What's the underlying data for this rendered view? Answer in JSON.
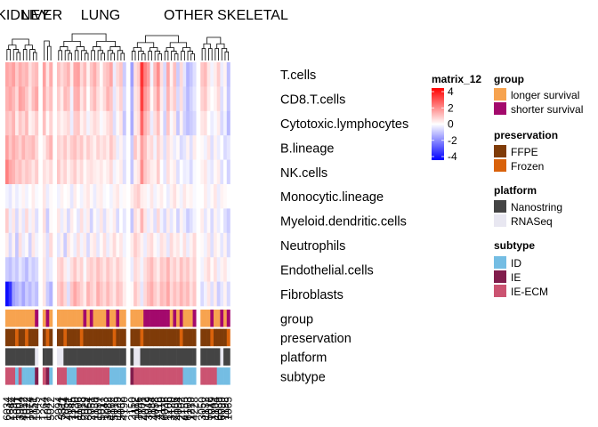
{
  "chart_data": {
    "type": "heatmap",
    "row_labels": [
      "T.cells",
      "CD8.T.cells",
      "Cytotoxic.lymphocytes",
      "B.lineage",
      "NK.cells",
      "Monocytic.lineage",
      "Myeloid.dendritic.cells",
      "Neutrophils",
      "Endothelial.cells",
      "Fibroblasts"
    ],
    "column_groups": [
      {
        "label": "KIDNEY",
        "n": 10
      },
      {
        "label": "LIVER",
        "n": 3
      },
      {
        "label": "LUNG",
        "n": 21
      },
      {
        "label": "OTHER",
        "n": 20
      },
      {
        "label": "SKELETAL",
        "n": 9
      }
    ],
    "annotation_rows": [
      "group",
      "preservation",
      "platform",
      "subtype"
    ],
    "annotations": {
      "group": [
        "longer survival",
        "longer survival",
        "longer survival",
        "longer survival",
        "longer survival",
        "longer survival",
        "longer survival",
        "longer survival",
        "longer survival",
        "shorter survival",
        "longer survival",
        "shorter survival",
        "longer survival",
        "longer survival",
        "longer survival",
        "longer survival",
        "longer survival",
        "longer survival",
        "longer survival",
        "longer survival",
        "longer survival",
        "shorter survival",
        "longer survival",
        "shorter survival",
        "longer survival",
        "longer survival",
        "longer survival",
        "longer survival",
        "shorter survival",
        "longer survival",
        "longer survival",
        "shorter survival",
        "longer survival",
        "longer survival",
        "longer survival",
        "longer survival",
        "longer survival",
        "longer survival",
        "shorter survival",
        "shorter survival",
        "shorter survival",
        "shorter survival",
        "shorter survival",
        "shorter survival",
        "shorter survival",
        "shorter survival",
        "longer survival",
        "shorter survival",
        "longer survival",
        "shorter survival",
        "longer survival",
        "longer survival",
        "longer survival",
        "shorter survival",
        "longer survival",
        "longer survival",
        "longer survival",
        "shorter survival",
        "longer survival",
        "longer survival",
        "shorter survival",
        "longer survival",
        "shorter survival"
      ],
      "preservation": [
        "FFPE",
        "FFPE",
        "FFPE",
        "Frozen",
        "FFPE",
        "FFPE",
        "Frozen",
        "FFPE",
        "FFPE",
        "FFPE",
        "FFPE",
        "Frozen",
        "FFPE",
        "FFPE",
        "FFPE",
        "Frozen",
        "FFPE",
        "FFPE",
        "FFPE",
        "FFPE",
        "Frozen",
        "FFPE",
        "FFPE",
        "FFPE",
        "FFPE",
        "FFPE",
        "FFPE",
        "FFPE",
        "FFPE",
        "FFPE",
        "Frozen",
        "FFPE",
        "FFPE",
        "FFPE",
        "FFPE",
        "FFPE",
        "FFPE",
        "Frozen",
        "FFPE",
        "FFPE",
        "FFPE",
        "FFPE",
        "FFPE",
        "FFPE",
        "FFPE",
        "FFPE",
        "FFPE",
        "FFPE",
        "FFPE",
        "Frozen",
        "FFPE",
        "FFPE",
        "FFPE",
        "FFPE",
        "FFPE",
        "FFPE",
        "FFPE",
        "Frozen",
        "FFPE",
        "FFPE",
        "FFPE",
        "FFPE",
        "Frozen"
      ],
      "platform": [
        "Nanostring",
        "Nanostring",
        "Nanostring",
        "Nanostring",
        "Nanostring",
        "Nanostring",
        "Nanostring",
        "Nanostring",
        "Nanostring",
        "RNASeq",
        "Nanostring",
        "Nanostring",
        "Nanostring",
        "RNASeq",
        "RNASeq",
        "Nanostring",
        "Nanostring",
        "Nanostring",
        "Nanostring",
        "Nanostring",
        "Nanostring",
        "Nanostring",
        "Nanostring",
        "Nanostring",
        "Nanostring",
        "Nanostring",
        "Nanostring",
        "Nanostring",
        "Nanostring",
        "Nanostring",
        "Nanostring",
        "Nanostring",
        "Nanostring",
        "Nanostring",
        "Nanostring",
        "RNASeq",
        "RNASeq",
        "Nanostring",
        "Nanostring",
        "Nanostring",
        "Nanostring",
        "Nanostring",
        "Nanostring",
        "Nanostring",
        "Nanostring",
        "Nanostring",
        "Nanostring",
        "Nanostring",
        "Nanostring",
        "Nanostring",
        "Nanostring",
        "Nanostring",
        "Nanostring",
        "Nanostring",
        "Nanostring",
        "Nanostring",
        "Nanostring",
        "Nanostring",
        "Nanostring",
        "Nanostring",
        "RNASeq",
        "Nanostring",
        "Nanostring"
      ],
      "subtype": [
        "IE-ECM",
        "IE-ECM",
        "IE-ECM",
        "ID",
        "IE-ECM",
        "ID",
        "ID",
        "ID",
        "ID",
        "IE",
        "IE-ECM",
        "IE",
        "ID",
        "IE-ECM",
        "IE-ECM",
        "IE-ECM",
        "ID",
        "ID",
        "ID",
        "IE-ECM",
        "IE-ECM",
        "IE-ECM",
        "IE-ECM",
        "IE-ECM",
        "IE-ECM",
        "IE-ECM",
        "IE-ECM",
        "IE-ECM",
        "IE-ECM",
        "ID",
        "ID",
        "ID",
        "ID",
        "ID",
        "IE",
        "IE-ECM",
        "IE-ECM",
        "IE-ECM",
        "IE-ECM",
        "IE-ECM",
        "IE-ECM",
        "IE-ECM",
        "IE-ECM",
        "IE-ECM",
        "IE-ECM",
        "IE-ECM",
        "IE-ECM",
        "IE-ECM",
        "IE-ECM",
        "IE-ECM",
        "ID",
        "ID",
        "ID",
        "ID",
        "IE-ECM",
        "IE-ECM",
        "IE-ECM",
        "IE-ECM",
        "IE-ECM",
        "ID",
        "ID",
        "ID",
        "ID"
      ]
    },
    "values": [
      [
        1.4,
        1.2,
        1.5,
        0.8,
        1.3,
        1.0,
        1.2,
        0.5,
        0.9,
        1.1,
        1.5,
        0.4,
        1.3,
        1.0,
        0.6,
        0.9,
        1.2,
        0.3,
        1.4,
        1.5,
        0.6,
        1.1,
        0.2,
        0.9,
        1.3,
        0.7,
        0.1,
        0.8,
        1.0,
        1.4,
        -0.3,
        0.6,
        0.9,
        -0.8,
        -1.5,
        0.5,
        0.8,
        3.2,
        2.0,
        1.5,
        -0.2,
        1.1,
        1.8,
        0.5,
        -0.6,
        1.4,
        0.2,
        1.0,
        -0.8,
        0.6,
        -0.4,
        -1.2,
        -0.9,
        -0.5,
        0.9,
        1.1,
        0.4,
        -0.2,
        0.3,
        0.8,
        -0.3,
        0.2,
        -1.0
      ],
      [
        1.2,
        1.4,
        1.1,
        0.6,
        1.5,
        1.3,
        0.9,
        0.4,
        1.0,
        1.4,
        1.3,
        0.6,
        1.0,
        0.8,
        0.3,
        1.1,
        0.9,
        -0.2,
        1.2,
        1.3,
        0.4,
        0.9,
        0.0,
        0.7,
        1.1,
        0.5,
        0.2,
        0.6,
        1.2,
        0.9,
        -0.4,
        0.3,
        0.7,
        -0.6,
        -1.2,
        0.4,
        0.6,
        3.0,
        1.6,
        1.2,
        0.1,
        0.8,
        1.5,
        0.3,
        -0.5,
        1.2,
        0.4,
        0.8,
        -0.6,
        0.5,
        -0.6,
        -1.1,
        -0.7,
        -0.4,
        0.7,
        0.9,
        0.3,
        0.0,
        0.2,
        0.6,
        -0.5,
        0.1,
        -0.9
      ],
      [
        1.0,
        0.8,
        1.2,
        0.3,
        0.9,
        0.6,
        1.1,
        0.2,
        0.4,
        0.8,
        1.0,
        0.1,
        0.7,
        0.5,
        0.2,
        0.4,
        0.6,
        -0.3,
        0.8,
        0.9,
        0.2,
        0.5,
        -0.2,
        0.3,
        0.6,
        0.4,
        -0.1,
        0.2,
        0.5,
        0.7,
        -0.5,
        0.1,
        0.4,
        -0.9,
        -1.3,
        0.3,
        0.5,
        2.4,
        1.2,
        0.8,
        -0.3,
        0.5,
        1.0,
        0.1,
        -0.7,
        0.9,
        -0.1,
        0.4,
        -0.9,
        0.2,
        -0.7,
        -1.0,
        -0.8,
        -0.6,
        0.4,
        0.5,
        0.0,
        -0.3,
        -0.1,
        0.3,
        -0.6,
        -0.2,
        -1.1
      ],
      [
        1.5,
        0.9,
        1.3,
        1.0,
        0.7,
        1.2,
        0.8,
        0.9,
        1.1,
        0.6,
        0.3,
        0.8,
        1.2,
        0.7,
        0.5,
        0.9,
        0.4,
        0.8,
        1.0,
        0.6,
        0.9,
        0.3,
        0.8,
        0.5,
        0.2,
        0.7,
        0.4,
        0.6,
        0.3,
        0.9,
        0.5,
        -0.3,
        0.2,
        -0.4,
        -0.8,
        0.9,
        0.3,
        1.5,
        1.0,
        0.4,
        0.6,
        -0.2,
        0.7,
        0.3,
        -0.5,
        0.5,
        0.2,
        -0.3,
        0.1,
        -0.6,
        -0.4,
        0.2,
        -0.5,
        0.3,
        0.1,
        -0.2,
        0.4,
        -0.5,
        0.2,
        -0.3,
        0.0,
        -0.6,
        -0.4
      ],
      [
        2.0,
        1.4,
        1.2,
        0.8,
        1.0,
        0.6,
        0.9,
        0.7,
        0.4,
        0.8,
        0.5,
        0.3,
        0.6,
        0.9,
        0.4,
        0.7,
        0.2,
        0.5,
        0.8,
        0.3,
        0.6,
        0.1,
        0.4,
        0.5,
        0.3,
        0.2,
        0.4,
        0.1,
        0.3,
        0.6,
        -0.2,
        0.1,
        0.3,
        -0.5,
        -0.9,
        0.2,
        0.4,
        1.8,
        0.9,
        0.6,
        0.3,
        0.2,
        0.8,
        0.0,
        -0.4,
        0.5,
        0.1,
        0.3,
        -0.5,
        0.0,
        -0.3,
        -0.2,
        -0.6,
        -0.1,
        0.2,
        0.4,
        -0.2,
        -0.4,
        0.1,
        0.3,
        -0.5,
        0.0,
        -0.7
      ],
      [
        -0.2,
        -0.4,
        0.1,
        -0.3,
        -0.1,
        0.2,
        -0.2,
        0.0,
        0.3,
        -0.1,
        0.4,
        -0.3,
        0.1,
        -0.2,
        0.2,
        0.0,
        0.1,
        -0.4,
        0.3,
        0.0,
        -0.2,
        0.2,
        0.4,
        0.1,
        -0.3,
        0.2,
        0.3,
        -0.1,
        0.0,
        -0.2,
        0.2,
        0.4,
        -0.1,
        0.1,
        0.3,
        0.6,
        0.8,
        0.3,
        0.2,
        -0.1,
        0.4,
        -0.2,
        0.1,
        0.3,
        0.0,
        -0.3,
        0.2,
        0.5,
        0.1,
        -0.2,
        0.4,
        0.1,
        0.2,
        -0.1,
        0.0,
        0.3,
        -0.2,
        0.1,
        0.4,
        -0.3,
        0.2,
        0.1,
        0.0
      ],
      [
        0.8,
        -0.3,
        0.4,
        -0.6,
        0.2,
        -0.4,
        0.6,
        -0.2,
        0.3,
        -0.5,
        0.5,
        -0.8,
        0.1,
        0.4,
        -0.3,
        0.2,
        -0.6,
        0.3,
        0.0,
        -0.4,
        0.5,
        -0.2,
        0.3,
        -0.7,
        0.1,
        -0.3,
        0.4,
        -0.5,
        0.2,
        -0.1,
        0.3,
        -0.6,
        0.0,
        -0.4,
        -0.9,
        0.5,
        0.2,
        1.2,
        0.4,
        -0.3,
        0.2,
        -0.5,
        0.6,
        -0.2,
        -0.6,
        0.3,
        -0.4,
        0.1,
        -0.7,
        0.2,
        -0.3,
        -0.8,
        -0.5,
        -0.2,
        0.3,
        -0.4,
        0.1,
        -0.6,
        0.2,
        -0.3,
        0.0,
        -0.5,
        -0.8
      ],
      [
        0.3,
        -0.6,
        0.2,
        -0.9,
        0.5,
        -0.3,
        0.1,
        -0.7,
        0.4,
        -0.2,
        0.3,
        -0.5,
        0.6,
        -0.4,
        0.2,
        -0.8,
        0.4,
        0.1,
        -0.3,
        0.5,
        -0.2,
        0.3,
        -0.6,
        0.2,
        0.4,
        -0.4,
        0.1,
        0.5,
        -0.3,
        0.2,
        0.6,
        0.1,
        0.4,
        -0.2,
        0.3,
        0.8,
        0.5,
        0.2,
        -0.3,
        0.4,
        0.6,
        0.1,
        -0.2,
        0.5,
        0.3,
        -0.4,
        0.6,
        0.2,
        0.4,
        -0.1,
        0.5,
        -0.3,
        0.2,
        0.6,
        0.1,
        -0.2,
        0.4,
        -0.5,
        0.3,
        0.1,
        -0.4,
        0.2,
        -0.6
      ],
      [
        -0.8,
        -1.0,
        -0.6,
        -0.9,
        -0.4,
        -0.7,
        -1.1,
        -0.5,
        -0.8,
        -0.6,
        0.4,
        -0.5,
        -0.3,
        0.6,
        0.8,
        0.3,
        -0.2,
        0.5,
        0.9,
        0.4,
        0.7,
        -0.1,
        0.6,
        0.8,
        0.5,
        1.0,
        0.7,
        0.4,
        0.9,
        0.6,
        0.3,
        0.8,
        0.5,
        0.2,
        -0.3,
        0.6,
        0.4,
        -0.2,
        0.5,
        0.8,
        1.1,
        0.6,
        0.3,
        0.9,
        0.7,
        1.2,
        0.5,
        0.8,
        0.4,
        1.0,
        0.6,
        0.9,
        0.4,
        0.7,
        -0.2,
        0.3,
        0.6,
        0.1,
        0.5,
        -0.3,
        0.2,
        0.4,
        -0.1
      ],
      [
        -3.8,
        -3.2,
        -1.5,
        -1.2,
        -0.9,
        -1.4,
        -0.8,
        -1.1,
        -0.7,
        -1.0,
        0.4,
        -0.8,
        -1.2,
        0.8,
        1.1,
        0.6,
        -0.5,
        0.9,
        1.4,
        1.0,
        0.7,
        0.3,
        1.2,
        0.8,
        0.5,
        1.3,
        0.9,
        0.6,
        1.1,
        0.7,
        0.4,
        1.0,
        0.8,
        0.3,
        0.1,
        0.9,
        0.5,
        -0.4,
        0.6,
        1.0,
        1.3,
        0.8,
        0.5,
        1.1,
        0.9,
        1.4,
        0.6,
        1.0,
        0.7,
        1.2,
        0.8,
        1.1,
        0.5,
        0.9,
        -0.6,
        -0.2,
        0.4,
        -0.5,
        0.3,
        -0.8,
        -0.4,
        0.2,
        -0.6
      ]
    ],
    "column_labels": [
      "6034",
      "2644",
      "1394",
      "1001",
      "3904",
      "4012",
      "1022",
      "1074",
      "2151",
      "1045",
      "1264",
      "1047",
      "5022",
      "2094",
      "3311",
      "7054",
      "4081",
      "1145",
      "1230",
      "1106",
      "5018",
      "2029",
      "3064",
      "2051",
      "1138",
      "1057",
      "5017",
      "1243",
      "3082",
      "4162",
      "5013",
      "1129",
      "5032",
      "4190",
      "2150",
      "1112",
      "1096",
      "2101",
      "4072",
      "3049",
      "1184",
      "4058",
      "4116",
      "4110",
      "6036",
      "1206",
      "3120",
      "4186",
      "4094",
      "2102",
      "4153",
      "6103",
      "1219",
      "4228",
      "3050",
      "1132",
      "5012",
      "1049",
      "1104",
      "6089",
      "6099",
      "1198",
      "1065"
    ],
    "legend": {
      "matrix_title": "matrix_12",
      "matrix_ticks": [
        "4",
        "2",
        "0",
        "-2",
        "-4"
      ],
      "matrix_tick_values": [
        4,
        2,
        0,
        -2,
        -4
      ],
      "color_scale": {
        "low": "#0000ff",
        "mid": "#ffffff",
        "high": "#ff0000",
        "min": -4,
        "max": 4
      },
      "group": {
        "title": "group",
        "items": [
          {
            "label": "longer survival",
            "color": "#f7a34f"
          },
          {
            "label": "shorter survival",
            "color": "#a3096c"
          }
        ]
      },
      "preservation": {
        "title": "preservation",
        "items": [
          {
            "label": "FFPE",
            "color": "#7f3b08"
          },
          {
            "label": "Frozen",
            "color": "#d9620b"
          }
        ]
      },
      "platform": {
        "title": "platform",
        "items": [
          {
            "label": "Nanostring",
            "color": "#444444"
          },
          {
            "label": "RNASeq",
            "color": "#e8e7f1"
          }
        ]
      },
      "subtype": {
        "title": "subtype",
        "items": [
          {
            "label": "ID",
            "color": "#74bde3"
          },
          {
            "label": "IE",
            "color": "#811d4c"
          },
          {
            "label": "IE-ECM",
            "color": "#cb5371"
          }
        ]
      }
    }
  }
}
